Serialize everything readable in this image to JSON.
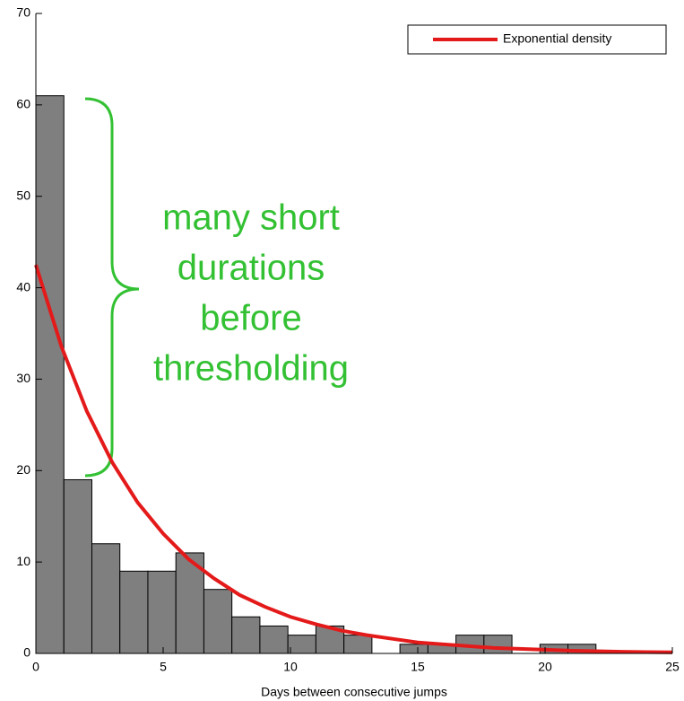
{
  "chart_data": {
    "type": "histogram",
    "xlabel": "Days between consecutive jumps",
    "bins": [
      0,
      1.1,
      2.2,
      3.3,
      4.4,
      5.5,
      6.6,
      7.7,
      8.8,
      9.9,
      11,
      12.1,
      13.2,
      14.3,
      15.4,
      16.5,
      17.6,
      18.7,
      19.8,
      20.9,
      22
    ],
    "counts": [
      61,
      19,
      12,
      9,
      9,
      11,
      7,
      4,
      3,
      2,
      3,
      2,
      0,
      1,
      1,
      2,
      2,
      0,
      1,
      1
    ],
    "color": "#7f7f7f",
    "series": [
      {
        "name": "Exponential density",
        "color": "#e41a1a",
        "x": [
          0,
          1,
          2,
          3,
          4,
          5,
          6,
          7,
          8,
          9,
          10,
          11,
          12,
          13,
          14,
          15,
          16,
          17,
          18,
          19,
          20,
          21,
          22,
          23,
          24,
          25
        ],
        "values": [
          42.5,
          33.6,
          26.5,
          20.9,
          16.5,
          13.1,
          10.3,
          8.2,
          6.4,
          5.1,
          4.0,
          3.2,
          2.5,
          2.0,
          1.6,
          1.2,
          1.0,
          0.8,
          0.6,
          0.5,
          0.4,
          0.3,
          0.24,
          0.19,
          0.15,
          0.12
        ]
      }
    ],
    "xlim": [
      0,
      25
    ],
    "xticks": [
      0,
      5,
      10,
      15,
      20,
      25
    ],
    "ylim": [
      0,
      70
    ],
    "yticks": [
      0,
      10,
      20,
      30,
      40,
      50,
      60,
      70
    ],
    "legend": "upper right",
    "annotation": {
      "lines": [
        "many short",
        "durations",
        "before",
        "thresholding"
      ],
      "color": "#33c133"
    }
  }
}
